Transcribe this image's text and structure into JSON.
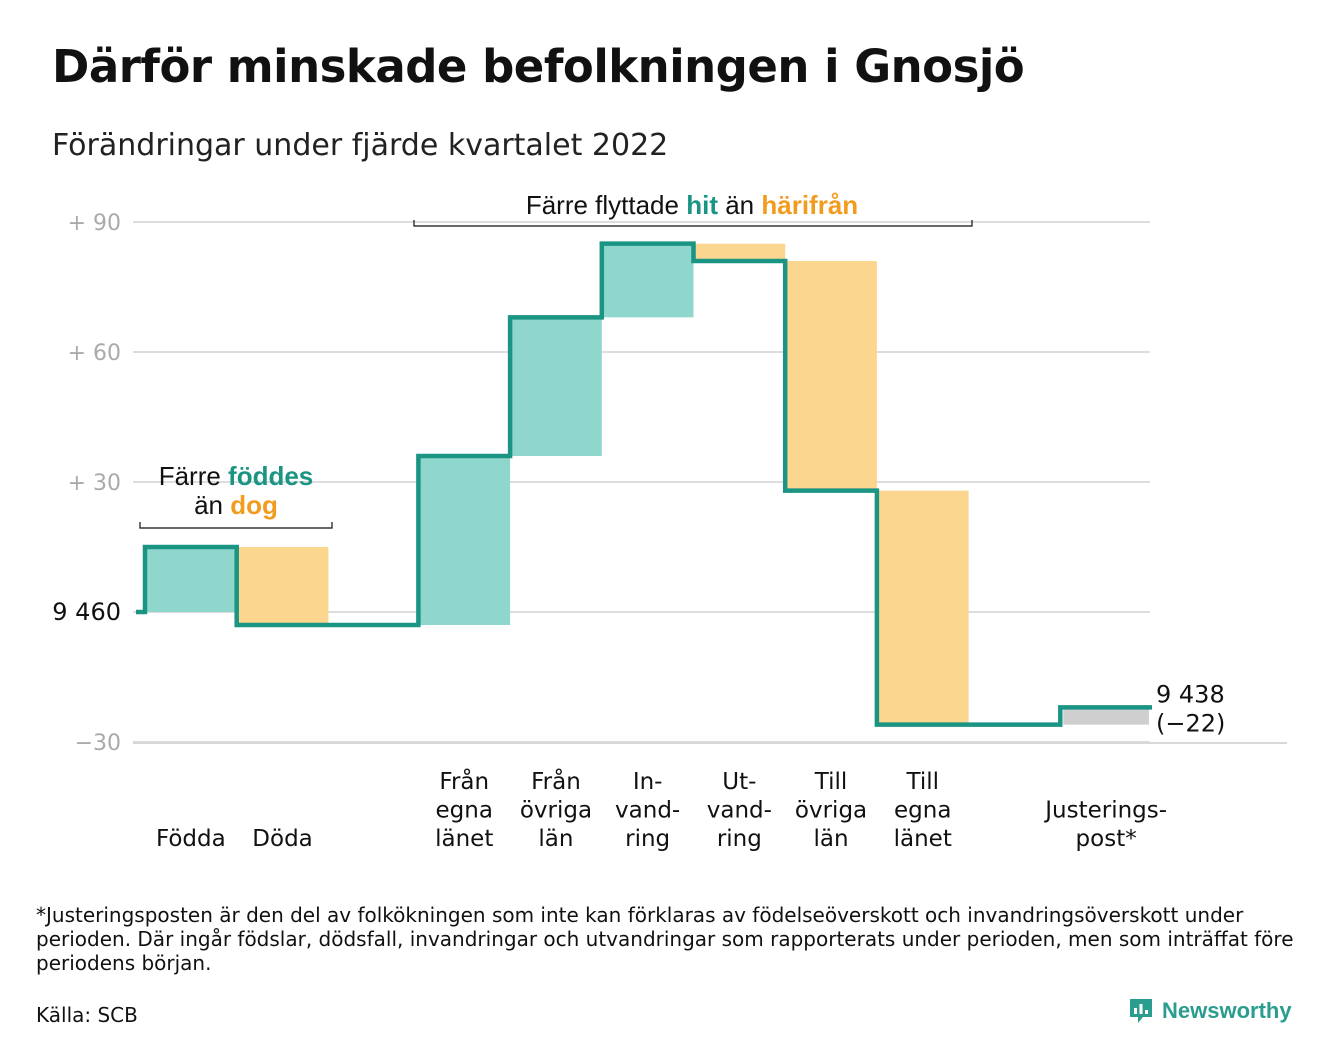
{
  "title": "Därför minskade befolkningen i Gnosjö",
  "subtitle": "Förändringar under fjärde kvartalet 2022",
  "footnote": "*Justeringsposten är den del av folkökningen som inte kan förklaras av födelseöverskott och invandringsöverskott under perioden. Där ingår födslar, dödsfall, invandringar och utvandringar som rapporterats under perioden, men som inträffat före periodens början.",
  "source": "Källa: SCB",
  "brand": "Newsworthy",
  "colors": {
    "teal_line": "#1a9483",
    "teal_fill": "#8fd6cc",
    "orange_fill": "#fbd68f",
    "orange_text": "#f29c1f",
    "gray_fill": "#cfcfcf",
    "grid": "#dddddd",
    "axis_text": "#aaaaaa"
  },
  "chart_data": {
    "type": "waterfall",
    "start_value": 9460,
    "start_label": "9 460",
    "end_label_value": "9 438",
    "end_label_change": "(−22)",
    "ylim": [
      -30,
      90
    ],
    "yticks": [
      {
        "value": 90,
        "label": "+ 90"
      },
      {
        "value": 60,
        "label": "+ 60"
      },
      {
        "value": 30,
        "label": "+ 30"
      },
      {
        "value": 0,
        "label": ""
      },
      {
        "value": -30,
        "label": "−30"
      }
    ],
    "steps": [
      {
        "category": [
          "",
          "Födda"
        ],
        "change": 15,
        "kind": "in"
      },
      {
        "category": [
          "",
          "Döda"
        ],
        "change": -18,
        "kind": "out"
      },
      {
        "category": [
          "Från",
          "egna",
          "länet"
        ],
        "change": 39,
        "kind": "in"
      },
      {
        "category": [
          "Från",
          "övriga",
          "län"
        ],
        "change": 32,
        "kind": "in"
      },
      {
        "category": [
          "In-",
          "vand-",
          "ring"
        ],
        "change": 17,
        "kind": "in"
      },
      {
        "category": [
          "Ut-",
          "vand-",
          "ring"
        ],
        "change": -4,
        "kind": "out"
      },
      {
        "category": [
          "Till",
          "övriga",
          "län"
        ],
        "change": -53,
        "kind": "out"
      },
      {
        "category": [
          "Till",
          "egna",
          "länet"
        ],
        "change": -54,
        "kind": "out"
      },
      {
        "category": [
          "Justerings-",
          "post*"
        ],
        "change": 4,
        "kind": "adjust"
      }
    ],
    "annotations": [
      {
        "group": "births",
        "text": [
          "Färre ",
          "föddes",
          " än ",
          "dog"
        ]
      },
      {
        "group": "moves",
        "text": [
          "Färre flyttade ",
          "hit",
          " än ",
          "härifrån"
        ]
      }
    ]
  }
}
